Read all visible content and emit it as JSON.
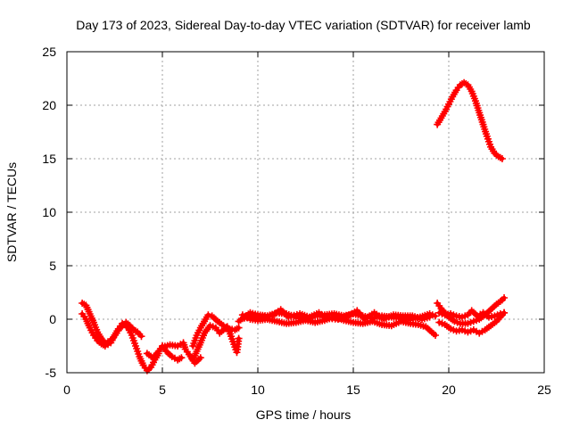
{
  "chart_data": {
    "type": "scatter",
    "title": "Day 173 of 2023, Sidereal Day-to-day VTEC variation (SDTVAR) for receiver lamb",
    "xlabel": "GPS time / hours",
    "ylabel": "SDTVAR / TECUs",
    "xlim": [
      0,
      25
    ],
    "ylim": [
      -5,
      25
    ],
    "xticks": [
      "0",
      "5",
      "10",
      "15",
      "20",
      "25"
    ],
    "yticks": [
      "-5",
      "0",
      "5",
      "10",
      "15",
      "20",
      "25"
    ],
    "grid": true,
    "color": "#ff0000",
    "series": [
      {
        "name": "seg1",
        "points": [
          [
            0.8,
            1.5
          ],
          [
            1.0,
            1.3
          ],
          [
            1.2,
            0.5
          ],
          [
            1.4,
            -0.3
          ],
          [
            1.6,
            -1.2
          ],
          [
            1.8,
            -1.8
          ],
          [
            2.0,
            -2.2
          ],
          [
            2.3,
            -2.0
          ],
          [
            2.6,
            -1.3
          ],
          [
            2.8,
            -0.8
          ],
          [
            3.0,
            -0.5
          ],
          [
            3.2,
            -0.8
          ],
          [
            3.4,
            -1.5
          ],
          [
            3.6,
            -2.5
          ],
          [
            3.8,
            -3.5
          ],
          [
            4.0,
            -4.3
          ],
          [
            4.2,
            -4.8
          ],
          [
            4.4,
            -4.5
          ],
          [
            4.6,
            -3.8
          ],
          [
            4.8,
            -3.2
          ]
        ]
      },
      {
        "name": "seg2",
        "points": [
          [
            0.8,
            0.5
          ],
          [
            1.0,
            0.0
          ],
          [
            1.2,
            -0.8
          ],
          [
            1.4,
            -1.5
          ],
          [
            1.6,
            -2.0
          ],
          [
            1.8,
            -2.3
          ],
          [
            2.0,
            -2.5
          ],
          [
            2.3,
            -2.2
          ],
          [
            2.5,
            -1.5
          ],
          [
            2.7,
            -0.9
          ],
          [
            2.9,
            -0.4
          ],
          [
            3.1,
            -0.3
          ],
          [
            3.3,
            -0.6
          ],
          [
            3.5,
            -1.0
          ],
          [
            3.7,
            -1.2
          ],
          [
            3.9,
            -1.6
          ]
        ]
      },
      {
        "name": "seg3",
        "points": [
          [
            4.2,
            -3.2
          ],
          [
            4.5,
            -3.6
          ],
          [
            4.8,
            -3.0
          ],
          [
            5.0,
            -2.5
          ],
          [
            5.2,
            -3.0
          ],
          [
            5.5,
            -3.5
          ],
          [
            5.8,
            -3.8
          ],
          [
            6.0,
            -3.6
          ]
        ]
      },
      {
        "name": "seg4",
        "points": [
          [
            5.0,
            -2.6
          ],
          [
            5.4,
            -2.4
          ],
          [
            5.8,
            -2.5
          ],
          [
            6.1,
            -2.2
          ],
          [
            6.2,
            -2.8
          ],
          [
            6.4,
            -3.3
          ],
          [
            6.7,
            -4.1
          ],
          [
            7.0,
            -3.6
          ]
        ]
      },
      {
        "name": "seg5",
        "points": [
          [
            6.6,
            -2.5
          ],
          [
            6.8,
            -1.5
          ],
          [
            7.0,
            -0.8
          ],
          [
            7.2,
            -0.2
          ],
          [
            7.4,
            0.4
          ],
          [
            7.6,
            0.3
          ],
          [
            7.9,
            -0.2
          ],
          [
            8.2,
            -0.6
          ],
          [
            8.5,
            -0.9
          ],
          [
            8.8,
            -1.0
          ],
          [
            9.0,
            -0.8
          ]
        ]
      },
      {
        "name": "seg6",
        "points": [
          [
            6.6,
            -3.8
          ],
          [
            6.8,
            -3.0
          ],
          [
            7.0,
            -2.2
          ],
          [
            7.2,
            -1.3
          ],
          [
            7.5,
            -0.6
          ],
          [
            7.8,
            -0.8
          ],
          [
            8.0,
            -1.3
          ],
          [
            8.2,
            -1.0
          ],
          [
            8.4,
            -0.7
          ],
          [
            8.6,
            -1.6
          ],
          [
            8.8,
            -2.6
          ],
          [
            8.9,
            -3.1
          ],
          [
            9.0,
            -1.8
          ]
        ]
      },
      {
        "name": "seg7",
        "points": [
          [
            9.0,
            -0.2
          ],
          [
            9.3,
            0.2
          ],
          [
            9.6,
            0.6
          ],
          [
            10.0,
            0.4
          ],
          [
            10.5,
            0.3
          ],
          [
            11.0,
            0.6
          ],
          [
            11.5,
            0.5
          ],
          [
            12.0,
            0.2
          ],
          [
            12.5,
            0.0
          ],
          [
            13.0,
            0.3
          ],
          [
            13.5,
            0.4
          ],
          [
            14.0,
            0.5
          ],
          [
            14.5,
            0.3
          ],
          [
            15.0,
            0.5
          ],
          [
            15.5,
            0.3
          ],
          [
            16.0,
            0.1
          ],
          [
            16.5,
            0.3
          ],
          [
            17.0,
            0.2
          ],
          [
            17.5,
            0.1
          ],
          [
            18.0,
            0.0
          ],
          [
            18.5,
            0.2
          ],
          [
            19.0,
            0.5
          ],
          [
            19.3,
            0.3
          ]
        ]
      },
      {
        "name": "seg8",
        "points": [
          [
            9.2,
            0.4
          ],
          [
            9.6,
            0.0
          ],
          [
            10.0,
            -0.1
          ],
          [
            10.5,
            0.0
          ],
          [
            11.0,
            -0.2
          ],
          [
            11.5,
            -0.4
          ],
          [
            12.0,
            -0.3
          ],
          [
            12.5,
            -0.1
          ],
          [
            13.0,
            -0.3
          ],
          [
            13.5,
            -0.1
          ],
          [
            14.0,
            0.2
          ],
          [
            14.5,
            -0.1
          ],
          [
            15.0,
            -0.3
          ],
          [
            15.5,
            -0.4
          ],
          [
            16.0,
            -0.2
          ],
          [
            16.5,
            -0.5
          ],
          [
            17.0,
            -0.6
          ],
          [
            17.5,
            -0.2
          ],
          [
            18.0,
            -0.4
          ],
          [
            18.4,
            -0.5
          ],
          [
            18.8,
            -0.7
          ],
          [
            19.1,
            -1.2
          ],
          [
            19.3,
            -1.5
          ]
        ]
      },
      {
        "name": "seg9",
        "points": [
          [
            9.3,
            0.1
          ],
          [
            9.8,
            0.3
          ],
          [
            10.2,
            0.2
          ],
          [
            10.8,
            0.4
          ],
          [
            11.2,
            0.9
          ],
          [
            11.6,
            0.2
          ],
          [
            12.2,
            0.5
          ],
          [
            12.7,
            0.2
          ],
          [
            13.2,
            0.6
          ],
          [
            13.6,
            0.1
          ],
          [
            14.2,
            0.0
          ],
          [
            14.8,
            0.4
          ],
          [
            15.2,
            0.8
          ],
          [
            15.6,
            0.0
          ],
          [
            16.1,
            0.6
          ],
          [
            16.6,
            0.0
          ],
          [
            17.1,
            0.4
          ],
          [
            17.6,
            0.3
          ],
          [
            18.1,
            0.3
          ],
          [
            18.6,
            0.0
          ],
          [
            19.0,
            0.2
          ]
        ]
      },
      {
        "name": "seg10",
        "points": [
          [
            19.4,
            18.2
          ],
          [
            19.6,
            18.8
          ],
          [
            19.8,
            19.4
          ],
          [
            20.0,
            20.1
          ],
          [
            20.2,
            20.8
          ],
          [
            20.4,
            21.4
          ],
          [
            20.6,
            21.9
          ],
          [
            20.8,
            22.1
          ],
          [
            21.0,
            21.9
          ],
          [
            21.2,
            21.3
          ],
          [
            21.4,
            20.4
          ],
          [
            21.6,
            19.3
          ],
          [
            21.8,
            18.2
          ],
          [
            22.0,
            17.1
          ],
          [
            22.2,
            16.1
          ],
          [
            22.4,
            15.5
          ],
          [
            22.6,
            15.2
          ],
          [
            22.8,
            15.0
          ]
        ]
      },
      {
        "name": "seg11",
        "points": [
          [
            19.4,
            1.5
          ],
          [
            19.6,
            1.0
          ],
          [
            19.8,
            0.6
          ],
          [
            20.0,
            0.2
          ],
          [
            20.3,
            -0.2
          ],
          [
            20.6,
            -0.4
          ],
          [
            21.0,
            -0.4
          ],
          [
            21.3,
            -0.2
          ],
          [
            21.6,
            0.0
          ],
          [
            21.9,
            0.4
          ],
          [
            22.2,
            0.9
          ],
          [
            22.5,
            1.4
          ],
          [
            22.8,
            1.8
          ],
          [
            22.9,
            2.0
          ]
        ]
      },
      {
        "name": "seg12",
        "points": [
          [
            19.5,
            0.6
          ],
          [
            19.8,
            0.4
          ],
          [
            20.1,
            0.5
          ],
          [
            20.4,
            0.3
          ],
          [
            20.7,
            0.2
          ],
          [
            21.0,
            0.4
          ],
          [
            21.2,
            0.8
          ],
          [
            21.5,
            0.3
          ],
          [
            21.8,
            0.6
          ],
          [
            22.1,
            0.2
          ],
          [
            22.4,
            0.3
          ],
          [
            22.7,
            0.5
          ],
          [
            22.9,
            0.6
          ]
        ]
      },
      {
        "name": "seg13",
        "points": [
          [
            19.5,
            -0.3
          ],
          [
            19.8,
            -0.5
          ],
          [
            20.1,
            -0.9
          ],
          [
            20.4,
            -1.1
          ],
          [
            20.7,
            -1.0
          ],
          [
            21.0,
            -1.2
          ],
          [
            21.3,
            -1.0
          ],
          [
            21.6,
            -1.3
          ],
          [
            21.9,
            -1.0
          ],
          [
            22.2,
            -0.6
          ],
          [
            22.5,
            -0.2
          ],
          [
            22.8,
            0.4
          ],
          [
            22.9,
            0.6
          ]
        ]
      }
    ]
  }
}
